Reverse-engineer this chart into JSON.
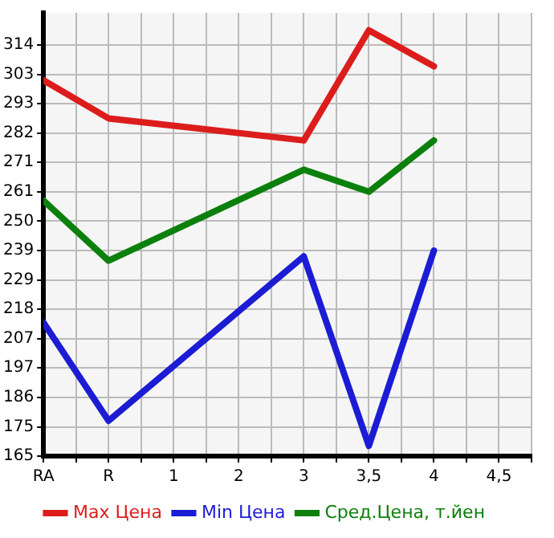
{
  "chart_data": {
    "type": "line",
    "categories": [
      "RA",
      "R",
      "1",
      "2",
      "3",
      "3,5",
      "4",
      "4,5"
    ],
    "series": [
      {
        "name": "Max Цена",
        "color": "#dd1c1c",
        "values": [
          301.2,
          287.4,
          null,
          null,
          279.4,
          319.3,
          306.3,
          null
        ]
      },
      {
        "name": "Min Цена",
        "color": "#1c1cd4",
        "values": [
          213.4,
          177.8,
          null,
          null,
          237.4,
          168.7,
          239.5,
          null
        ]
      },
      {
        "name": "Сред.Цена, т.йен",
        "color": "#0c800c",
        "values": [
          257.6,
          235.8,
          null,
          null,
          268.8,
          260.8,
          279.4,
          null
        ]
      }
    ],
    "ylim": [
      165,
      325.64
    ],
    "yticks": [
      165,
      {
        "value": 175.4,
        "label": "175"
      },
      {
        "value": 186.29,
        "label": "186"
      },
      {
        "value": 196.93,
        "label": "197"
      },
      {
        "value": 207.4,
        "label": "207"
      },
      {
        "value": 218.21,
        "label": "218"
      },
      {
        "value": 228.86,
        "label": "229"
      },
      {
        "value": 239.5,
        "label": "239"
      },
      {
        "value": 250.14,
        "label": "250"
      },
      {
        "value": 260.79,
        "label": "261"
      },
      {
        "value": 271.43,
        "label": "271"
      },
      {
        "value": 282.07,
        "label": "282"
      },
      {
        "value": 292.71,
        "label": "293"
      },
      {
        "value": 303.36,
        "label": "303"
      },
      {
        "value": 314,
        "label": "314"
      }
    ],
    "grid": true,
    "legend": "bottom",
    "marker": "none",
    "line_style": "solid"
  }
}
